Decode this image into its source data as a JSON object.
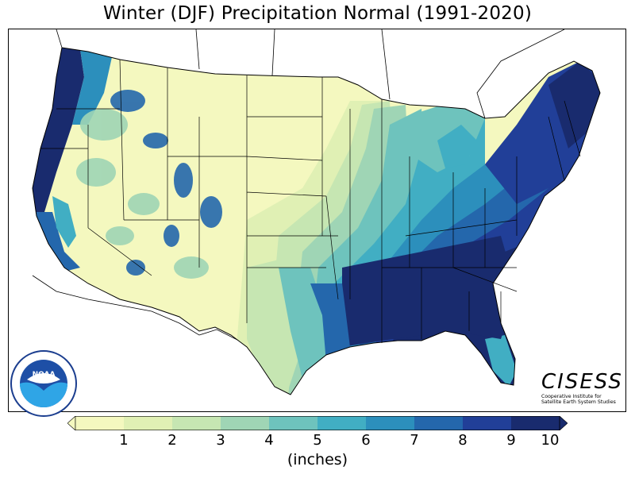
{
  "title": "Winter (DJF) Precipitation Normal (1991-2020)",
  "colorbar": {
    "ticks": [
      "1",
      "2",
      "3",
      "4",
      "5",
      "6",
      "7",
      "8",
      "9",
      "10"
    ],
    "colors": [
      "#f4f8bf",
      "#e0f0b4",
      "#c6e6b2",
      "#9fd5b5",
      "#6ec3bd",
      "#41aec3",
      "#2c8fbc",
      "#2467ac",
      "#213f98",
      "#192b6e"
    ],
    "unit_label": "(inches)",
    "extend": "both"
  },
  "logos": {
    "noaa": {
      "center_text": "NOAA",
      "ring_text": "NATIONAL OCEANIC AND ATMOSPHERIC ADMINISTRATION",
      "bottom_text": "U.S. DEPARTMENT OF COMMERCE"
    },
    "cisess": {
      "name": "CISESS",
      "line1": "Cooperative Institute for",
      "line2": "Satellite Earth System Studies"
    }
  },
  "map": {
    "region": "Contiguous United States",
    "variable": "Winter precipitation normal",
    "palette": "YlGnBu"
  }
}
